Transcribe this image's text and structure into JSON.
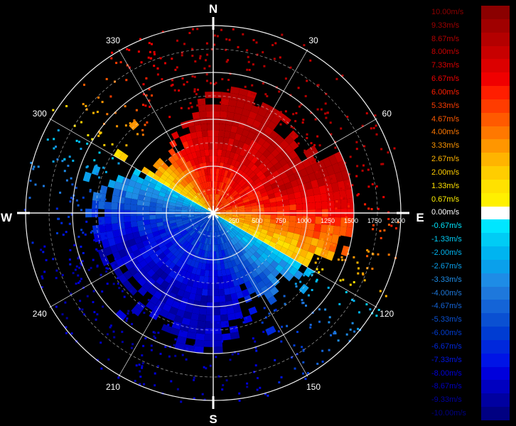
{
  "radar": {
    "compass": {
      "north": "N",
      "east": "E",
      "south": "S",
      "west": "W"
    },
    "azimuth_labels": [
      "30",
      "60",
      "120",
      "150",
      "210",
      "240",
      "300",
      "330"
    ],
    "range_labels": [
      "250",
      "500",
      "750",
      "1000",
      "1250",
      "1500",
      "1750",
      "2000"
    ]
  },
  "colorbar": {
    "labels": [
      "10.00m/s",
      "9.33m/s",
      "8.67m/s",
      "8.00m/s",
      "7.33m/s",
      "6.67m/s",
      "6.00m/s",
      "5.33m/s",
      "4.67m/s",
      "4.00m/s",
      "3.33m/s",
      "2.67m/s",
      "2.00m/s",
      "1.33m/s",
      "0.67m/s",
      "0.00m/s",
      "-0.67m/s",
      "-1.33m/s",
      "-2.00m/s",
      "-2.67m/s",
      "-3.33m/s",
      "-4.00m/s",
      "-4.67m/s",
      "-5.33m/s",
      "-6.00m/s",
      "-6.67m/s",
      "-7.33m/s",
      "-8.00m/s",
      "-8.67m/s",
      "-9.33m/s",
      "-10.00m/s"
    ],
    "colors": [
      "#8b0000",
      "#a00000",
      "#b40000",
      "#c80000",
      "#dc0000",
      "#f00000",
      "#ff1e00",
      "#ff3c00",
      "#ff5a00",
      "#ff7800",
      "#ff9600",
      "#ffb400",
      "#ffcd00",
      "#ffe100",
      "#fff000",
      "#ffffff",
      "#00e6ff",
      "#00ccf5",
      "#00b4f0",
      "#0aa0eb",
      "#1e8ce6",
      "#1e78dc",
      "#1464d7",
      "#0a50d2",
      "#003cd2",
      "#0028dc",
      "#0014e6",
      "#0000dc",
      "#0000c0",
      "#0000a0",
      "#000082"
    ]
  }
}
